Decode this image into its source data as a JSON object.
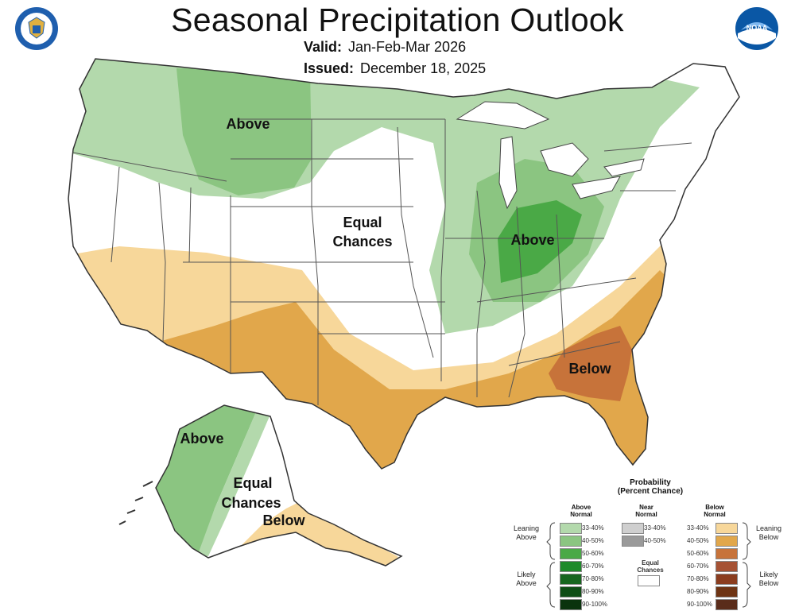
{
  "header": {
    "title": "Seasonal Precipitation Outlook",
    "valid_label": "Valid:",
    "valid_value": "Jan-Feb-Mar 2026",
    "issued_label": "Issued:",
    "issued_value": "December 18, 2025"
  },
  "logos": {
    "left": "us-department-of-commerce-seal",
    "right": "noaa-logo",
    "noaa_text": "NOAA"
  },
  "map": {
    "labels": {
      "north_above": "Above",
      "equal_1": "Equal",
      "equal_2": "Chances",
      "midwest_above": "Above",
      "southeast_below": "Below",
      "ak_above": "Above",
      "ak_equal_1": "Equal",
      "ak_equal_2": "Chances",
      "ak_below": "Below"
    },
    "colors": {
      "above_33_40": "#b3d9ac",
      "above_40_50": "#8bc581",
      "above_50_60": "#4aa946",
      "below_33_40": "#f7d79a",
      "below_40_50": "#e1a74b",
      "below_50_60": "#c7733a",
      "land": "#ffffff",
      "border": "#333333"
    }
  },
  "legend": {
    "title_1": "Probability",
    "title_2": "(Percent Chance)",
    "above_header_1": "Above",
    "above_header_2": "Normal",
    "near_header_1": "Near",
    "near_header_2": "Normal",
    "below_header_1": "Below",
    "below_header_2": "Normal",
    "ranges": [
      "33-40%",
      "40-50%",
      "50-60%",
      "60-70%",
      "70-80%",
      "80-90%",
      "90-100%"
    ],
    "near_ranges": [
      "33-40%",
      "40-50%"
    ],
    "equal_1": "Equal",
    "equal_2": "Chances",
    "leaning_above_1": "Leaning",
    "leaning_above_2": "Above",
    "likely_above_1": "Likely",
    "likely_above_2": "Above",
    "leaning_below_1": "Leaning",
    "leaning_below_2": "Below",
    "likely_below_1": "Likely",
    "likely_below_2": "Below",
    "above_colors": [
      "#b3d9ac",
      "#8bc581",
      "#4aa946",
      "#1f8a2a",
      "#17661f",
      "#0f4d16",
      "#0a330d"
    ],
    "near_colors": [
      "#cfcfcf",
      "#9a9a9a"
    ],
    "below_colors": [
      "#f7d79a",
      "#e1a74b",
      "#c7733a",
      "#a65234",
      "#8b3d1f",
      "#6e3414",
      "#5a2c1a"
    ]
  }
}
